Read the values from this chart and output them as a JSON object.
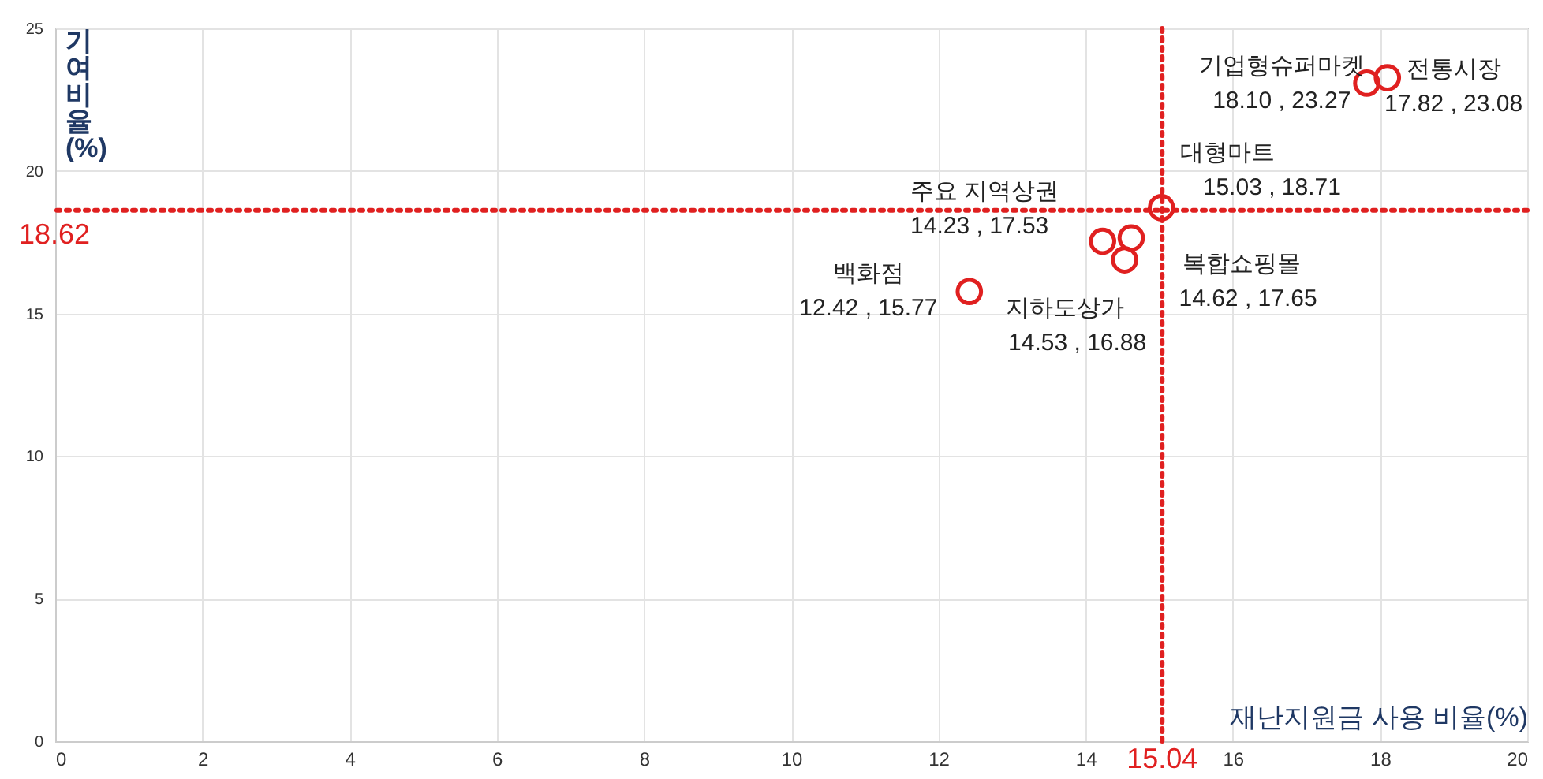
{
  "chart_data": {
    "type": "scatter",
    "xlabel": "재난지원금 사용 비율(%)",
    "ylabel": "기여 비율(%)",
    "xlim": [
      0,
      20
    ],
    "xticks": [
      0,
      2,
      4,
      6,
      8,
      10,
      12,
      14,
      16,
      18,
      20
    ],
    "ylim": [
      0,
      25
    ],
    "yticks": [
      0,
      5,
      10,
      15,
      20,
      25
    ],
    "grid": true,
    "marker": "circle",
    "series": [
      {
        "color": "#e02020",
        "x": [
          12.42,
          14.23,
          14.53,
          14.62,
          15.03,
          17.82,
          18.1
        ],
        "values": [
          15.77,
          17.53,
          16.88,
          17.65,
          18.71,
          23.08,
          23.27
        ],
        "value_labels": [
          "12.42 , 15.77",
          "14.23 , 17.53",
          "14.53 , 16.88",
          "14.62 , 17.65",
          "15.03 , 18.71",
          "17.82 , 23.08",
          "18.10 , 23.27"
        ]
      }
    ],
    "annotations": [
      {
        "text": "백화점",
        "x": 12.42,
        "y": 15.77
      },
      {
        "text": "주요 지역상권",
        "x": 14.23,
        "y": 17.53
      },
      {
        "text": "지하도상가",
        "x": 14.53,
        "y": 16.88
      },
      {
        "text": "복합쇼핑몰",
        "x": 14.62,
        "y": 17.65
      },
      {
        "text": "대형마트",
        "x": 15.03,
        "y": 18.71
      },
      {
        "text": "전통시장",
        "x": 17.82,
        "y": 23.08
      },
      {
        "text": "기업형슈퍼마켓",
        "x": 18.1,
        "y": 23.27
      }
    ],
    "ref_lines": [
      {
        "axis": "x",
        "value": 15.04,
        "label": "15.04",
        "color": "#e02020",
        "line_style": "dotted"
      },
      {
        "axis": "y",
        "value": 18.62,
        "label": "18.62",
        "color": "#e02020",
        "line_style": "dotted"
      }
    ]
  }
}
